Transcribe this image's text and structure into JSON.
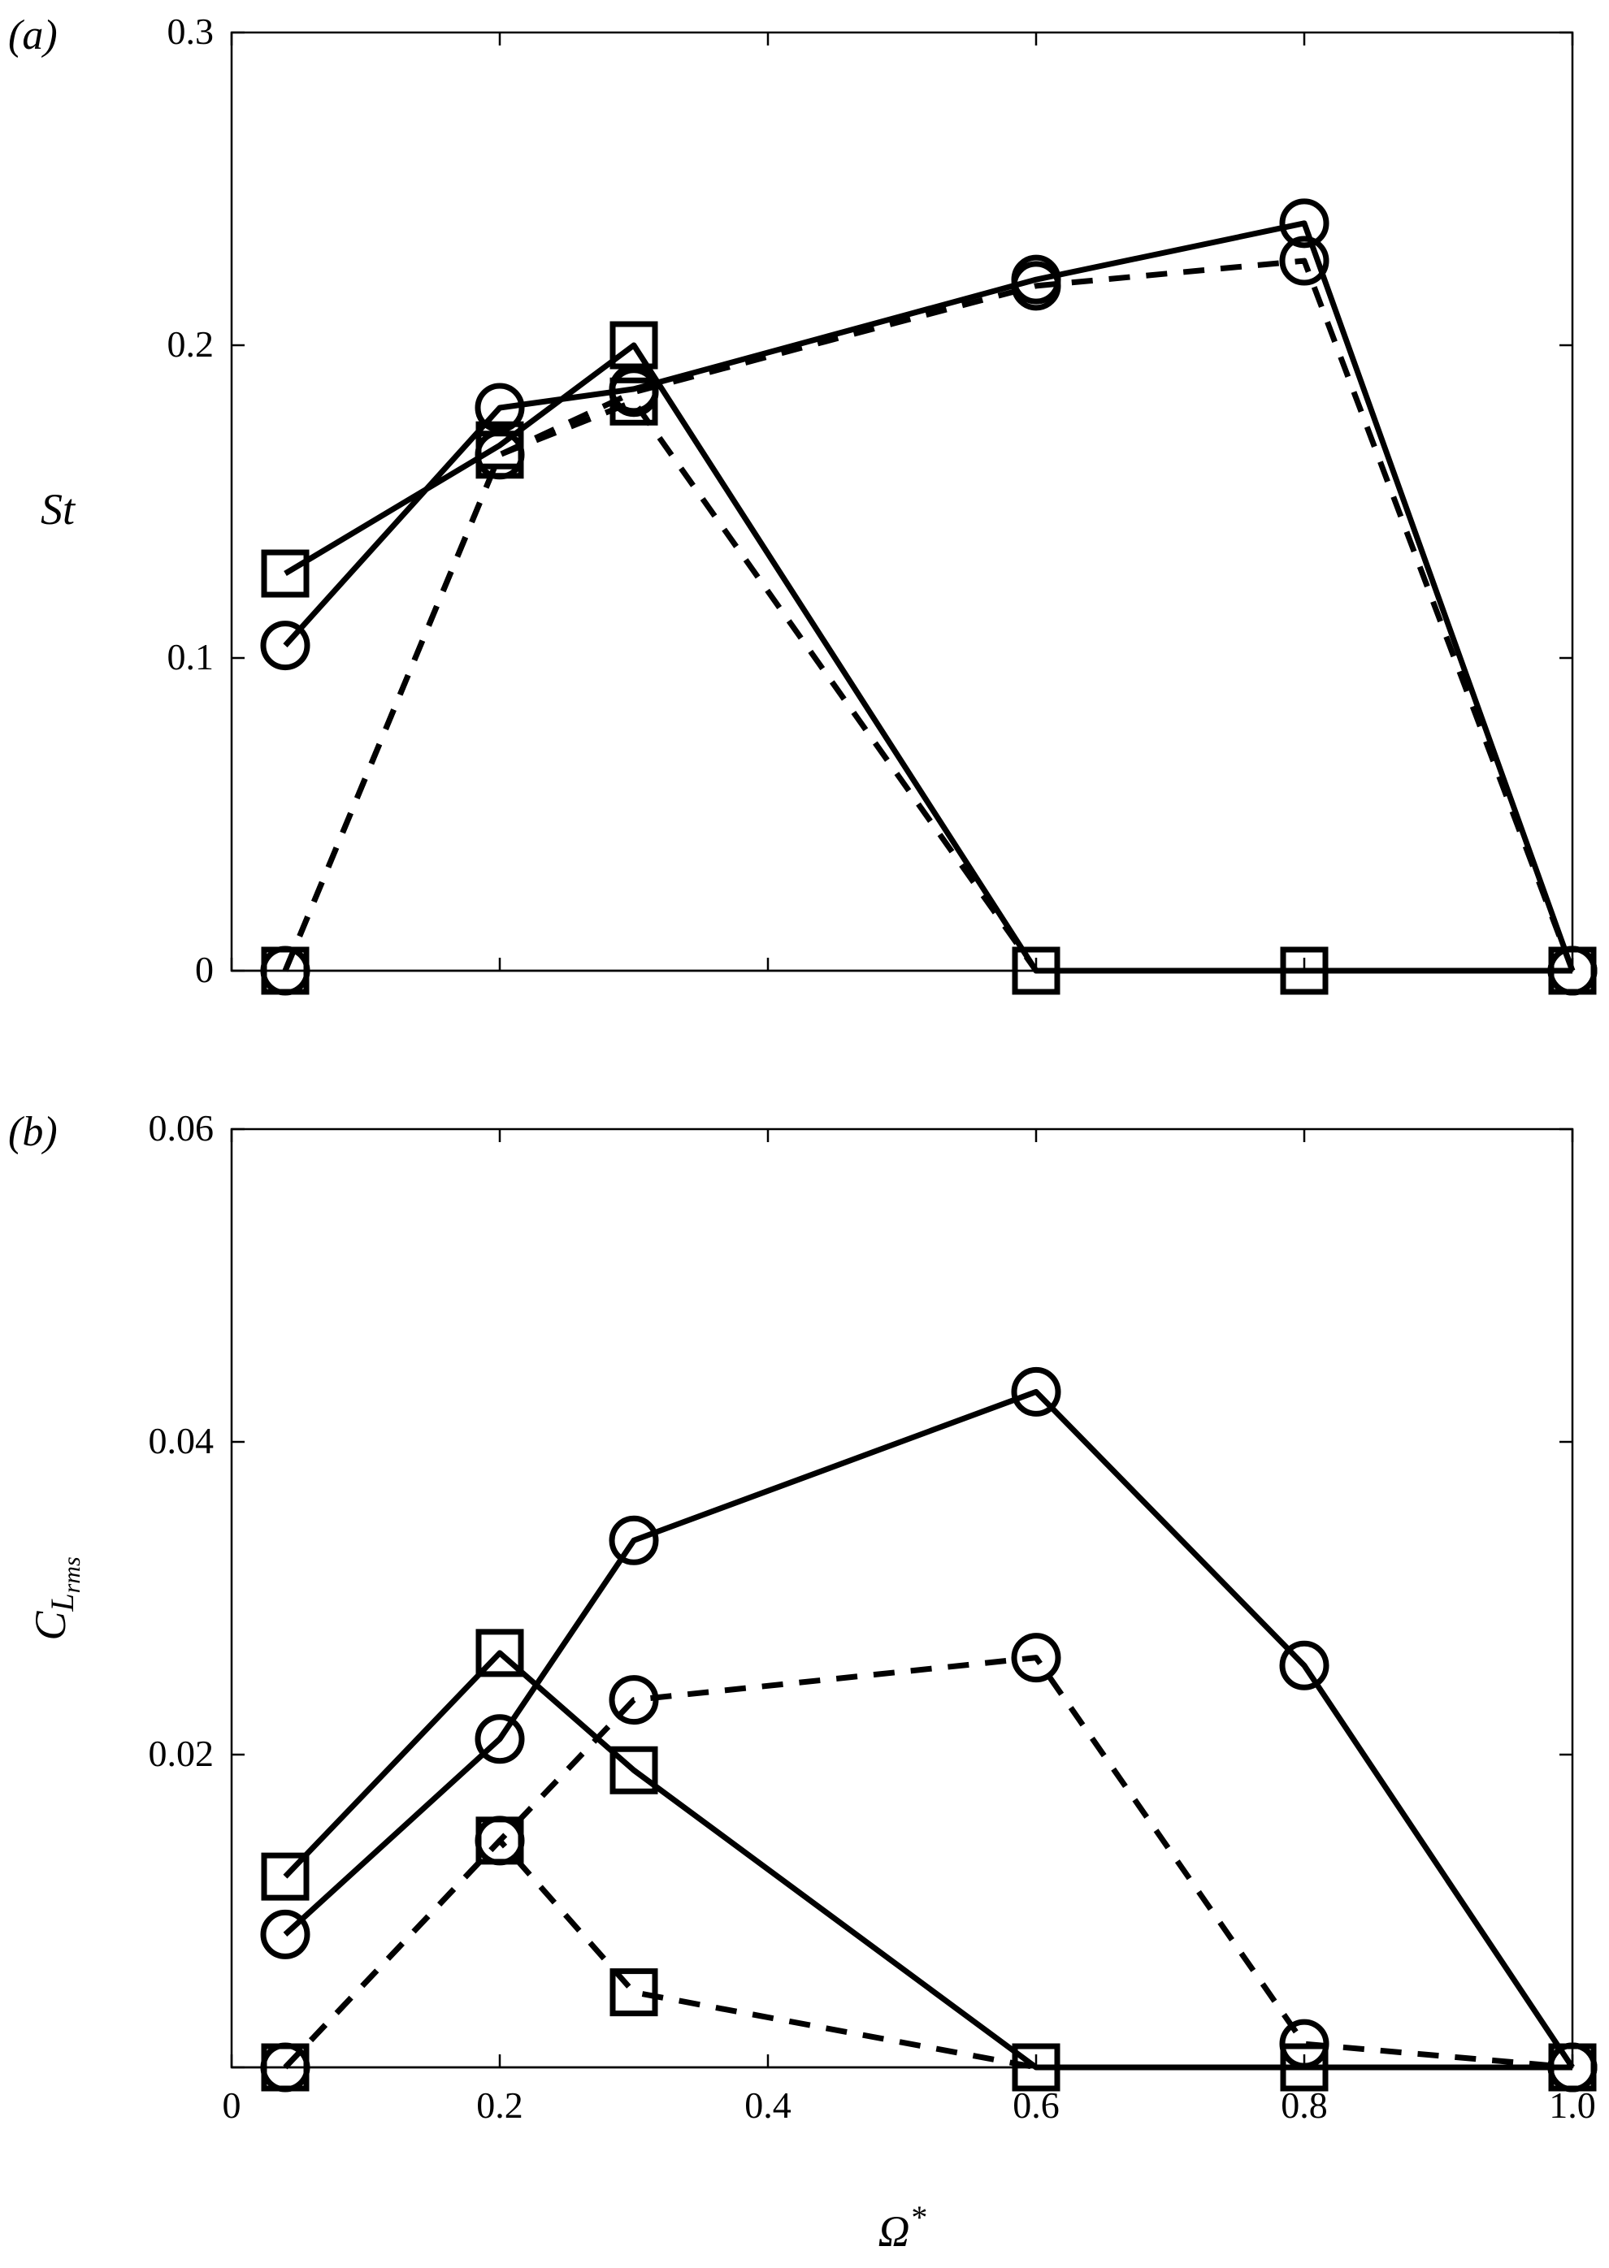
{
  "chart_data": [
    {
      "type": "line",
      "panel_label": "(a)",
      "ylabel": "St",
      "xlabel": "",
      "xlim": [
        0,
        1.0
      ],
      "ylim": [
        0,
        0.3
      ],
      "xticks": [
        0,
        0.2,
        0.4,
        0.6,
        0.8,
        1.0
      ],
      "xtick_labels": [],
      "yticks": [
        0,
        0.1,
        0.2,
        0.3
      ],
      "ytick_labels": [
        "0",
        "0.1",
        "0.2",
        "0.3"
      ],
      "grid": false,
      "series": [
        {
          "marker": "square",
          "line": "solid",
          "x": [
            0.04,
            0.2,
            0.3,
            0.6,
            0.8,
            1.0
          ],
          "y": [
            0.127,
            0.168,
            0.2,
            0.0,
            0.0,
            0.0
          ]
        },
        {
          "marker": "circle",
          "line": "solid",
          "x": [
            0.04,
            0.2,
            0.3,
            0.6,
            0.8,
            1.0
          ],
          "y": [
            0.104,
            0.18,
            0.186,
            0.221,
            0.239,
            0.0
          ]
        },
        {
          "marker": "square",
          "line": "dashed",
          "x": [
            0.04,
            0.2,
            0.3,
            0.6,
            0.8,
            1.0
          ],
          "y": [
            0.0,
            0.165,
            0.182,
            0.0,
            0.0,
            0.0
          ]
        },
        {
          "marker": "circle",
          "line": "dashed",
          "x": [
            0.04,
            0.2,
            0.3,
            0.6,
            0.8,
            1.0
          ],
          "y": [
            0.0,
            0.165,
            0.185,
            0.219,
            0.227,
            0.0
          ]
        }
      ]
    },
    {
      "type": "line",
      "panel_label": "(b)",
      "ylabel": "C_Lrms",
      "ylabel_main": "C",
      "ylabel_sub": "L",
      "ylabel_subsub": "rms",
      "xlabel": "Ω*",
      "xlabel_main": "Ω",
      "xlabel_sup": "*",
      "xlim": [
        0,
        1.0
      ],
      "ylim": [
        0,
        0.06
      ],
      "xticks": [
        0,
        0.2,
        0.4,
        0.6,
        0.8,
        1.0
      ],
      "xtick_labels": [
        "0",
        "0.2",
        "0.4",
        "0.6",
        "0.8",
        "1.0"
      ],
      "yticks": [
        0,
        0.02,
        0.04,
        0.06
      ],
      "ytick_labels": [
        "",
        "0.02",
        "0.04",
        "0.06"
      ],
      "grid": false,
      "series": [
        {
          "marker": "square",
          "line": "solid",
          "x": [
            0.04,
            0.2,
            0.3,
            0.6,
            0.8,
            1.0
          ],
          "y": [
            0.0122,
            0.0265,
            0.019,
            0.0,
            0.0,
            0.0
          ]
        },
        {
          "marker": "circle",
          "line": "solid",
          "x": [
            0.04,
            0.2,
            0.3,
            0.6,
            0.8,
            1.0
          ],
          "y": [
            0.0085,
            0.021,
            0.0337,
            0.0432,
            0.0257,
            0.0
          ]
        },
        {
          "marker": "square",
          "line": "dashed",
          "x": [
            0.04,
            0.2,
            0.3,
            0.6,
            0.8,
            1.0
          ],
          "y": [
            0.0,
            0.0145,
            0.0048,
            0.0,
            0.0,
            0.0
          ]
        },
        {
          "marker": "circle",
          "line": "dashed",
          "x": [
            0.04,
            0.2,
            0.3,
            0.6,
            0.8,
            1.0
          ],
          "y": [
            0.0,
            0.0145,
            0.0235,
            0.0262,
            0.0015,
            0.0
          ]
        }
      ]
    }
  ]
}
